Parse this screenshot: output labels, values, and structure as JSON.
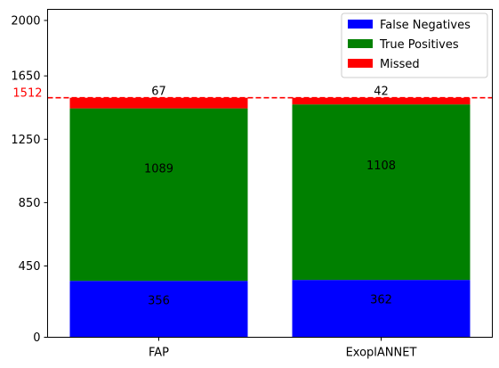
{
  "chart_data": {
    "type": "bar",
    "stacked": true,
    "categories": [
      "FAP",
      "ExoplANNET"
    ],
    "series": [
      {
        "name": "False Negatives",
        "color": "#0000ff",
        "values": [
          356,
          362
        ],
        "labels": [
          "356",
          "362"
        ]
      },
      {
        "name": "True Positives",
        "color": "#008000",
        "values": [
          1089,
          1108
        ],
        "labels": [
          "1089",
          "1108"
        ]
      },
      {
        "name": "Missed",
        "color": "#ff0000",
        "values": [
          67,
          42
        ],
        "labels": [
          "67",
          "42"
        ]
      }
    ],
    "ylim": [
      0,
      2070
    ],
    "yticks": [
      0,
      450,
      850,
      1250,
      1650,
      2000
    ],
    "reference_line": {
      "value": 1512,
      "label": "1512",
      "color": "#ff0000",
      "style": "dashed"
    },
    "legend_position": "top-right",
    "grid": false
  }
}
